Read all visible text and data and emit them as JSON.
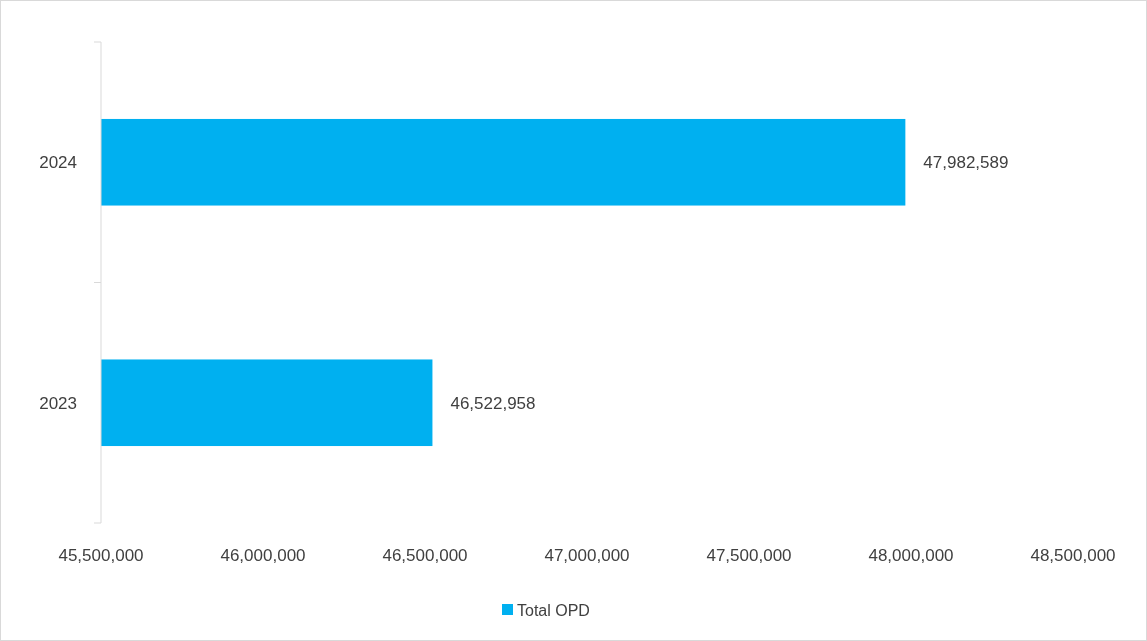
{
  "chart_data": {
    "type": "bar",
    "orientation": "horizontal",
    "categories": [
      "2024",
      "2023"
    ],
    "series": [
      {
        "name": "Total OPD",
        "color": "#00b0f0",
        "values": [
          47982589,
          46522958
        ],
        "value_labels": [
          "47,982,589",
          "46,522,958"
        ]
      }
    ],
    "xlim": [
      45500000,
      48500000
    ],
    "xticks": [
      {
        "value": 45500000,
        "label": "45,500,000"
      },
      {
        "value": 46000000,
        "label": "46,000,000"
      },
      {
        "value": 46500000,
        "label": "46,500,000"
      },
      {
        "value": 47000000,
        "label": "47,000,000"
      },
      {
        "value": 47500000,
        "label": "47,500,000"
      },
      {
        "value": 48000000,
        "label": "48,000,000"
      },
      {
        "value": 48500000,
        "label": "48,500,000"
      }
    ],
    "legend": "bottom",
    "grid": false
  }
}
